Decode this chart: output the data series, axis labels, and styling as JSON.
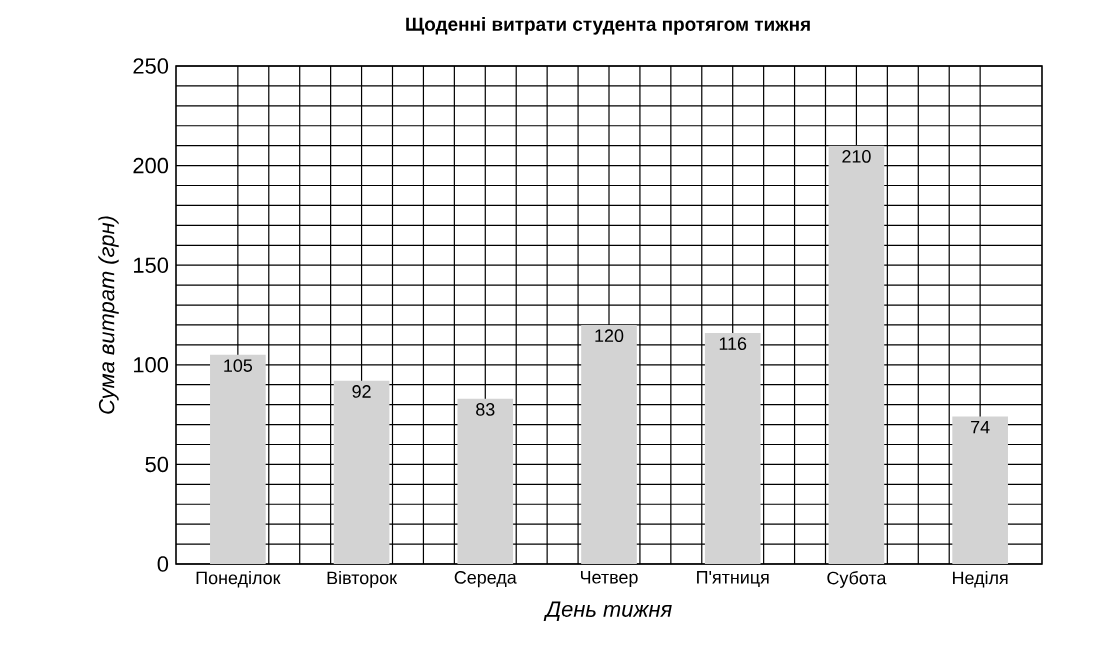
{
  "chart_data": {
    "type": "bar",
    "title": "Щоденні витрати студента протягом тижня",
    "xlabel": "День тижня",
    "ylabel": "Сума витрат (грн)",
    "categories": [
      "Понеділок",
      "Вівторок",
      "Середа",
      "Четвер",
      "П'ятниця",
      "Субота",
      "Неділя"
    ],
    "values": [
      105,
      92,
      83,
      120,
      116,
      210,
      74
    ],
    "color": "#d3d3d3",
    "ylim": [
      0,
      250
    ],
    "yticks": [
      0,
      50,
      100,
      150,
      200,
      250
    ],
    "grid": true,
    "data_labels": true
  }
}
